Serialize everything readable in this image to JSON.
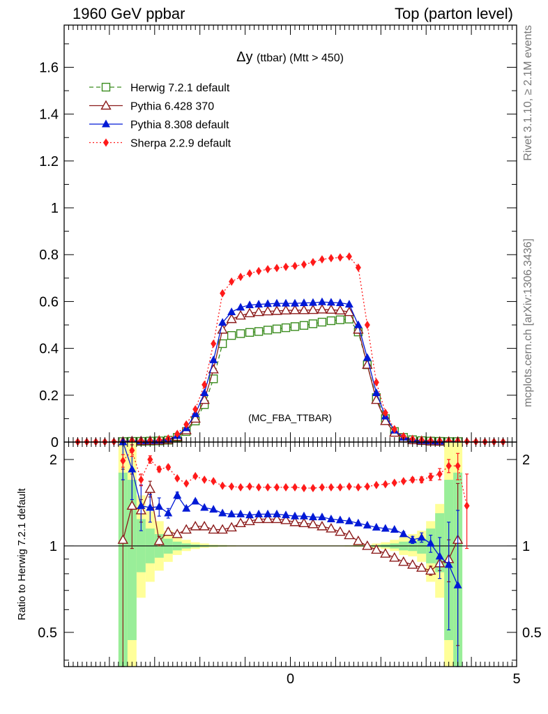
{
  "header": {
    "left": "1960 GeV ppbar",
    "right": "Top (parton level)"
  },
  "side": {
    "rivet": "Rivet 3.1.10, ≥ 2.1M events",
    "mcplots": "mcplots.cern.ch [arXiv:1306.3436]"
  },
  "chart_data": [
    {
      "type": "line",
      "title": "Δy (ttbar) (Mtt > 450)",
      "title_main": "Δy",
      "title_sub": "(ttbar) (Mtt > 450)",
      "watermark": "(MC_FBA_TTBAR)",
      "xlim": [
        -5,
        5
      ],
      "ylim": [
        0,
        1.78
      ],
      "yticks": [
        "0",
        "0.2",
        "0.4",
        "0.6",
        "0.8",
        "1",
        "1.2",
        "1.4",
        "1.6"
      ],
      "legend_position": "top-left",
      "series": [
        {
          "name": "Herwig 7.2.1 default",
          "color": "#3a8c1e",
          "marker": "open-square",
          "line": "dashed",
          "x": [
            -3.7,
            -3.5,
            -3.3,
            -3.1,
            -2.9,
            -2.7,
            -2.5,
            -2.3,
            -2.1,
            -1.9,
            -1.7,
            -1.5,
            -1.3,
            -1.1,
            -0.9,
            -0.7,
            -0.5,
            -0.3,
            -0.1,
            0.1,
            0.3,
            0.5,
            0.7,
            0.9,
            1.1,
            1.3,
            1.5,
            1.7,
            1.9,
            2.1,
            2.3,
            2.5,
            2.7,
            2.9,
            3.1,
            3.3,
            3.5,
            3.7
          ],
          "y": [
            0.002,
            0.003,
            0.003,
            0.004,
            0.005,
            0.008,
            0.02,
            0.045,
            0.09,
            0.16,
            0.27,
            0.42,
            0.455,
            0.463,
            0.468,
            0.472,
            0.478,
            0.483,
            0.488,
            0.493,
            0.498,
            0.505,
            0.512,
            0.518,
            0.522,
            0.525,
            0.47,
            0.33,
            0.19,
            0.1,
            0.045,
            0.02,
            0.01,
            0.006,
            0.004,
            0.003,
            0.002,
            0.002
          ]
        },
        {
          "name": "Pythia 6.428 370",
          "color": "#8b1a1a",
          "marker": "open-triangle",
          "line": "solid",
          "x": [
            -3.7,
            -3.5,
            -3.3,
            -3.1,
            -2.9,
            -2.7,
            -2.5,
            -2.3,
            -2.1,
            -1.9,
            -1.7,
            -1.5,
            -1.3,
            -1.1,
            -0.9,
            -0.7,
            -0.5,
            -0.3,
            -0.1,
            0.1,
            0.3,
            0.5,
            0.7,
            0.9,
            1.1,
            1.3,
            1.5,
            1.7,
            1.9,
            2.1,
            2.3,
            2.5,
            2.7,
            2.9,
            3.1,
            3.3,
            3.5,
            3.7
          ],
          "y": [
            0.002,
            0.004,
            0.004,
            0.005,
            0.006,
            0.009,
            0.022,
            0.05,
            0.1,
            0.18,
            0.31,
            0.48,
            0.525,
            0.54,
            0.55,
            0.555,
            0.558,
            0.56,
            0.562,
            0.563,
            0.563,
            0.564,
            0.566,
            0.565,
            0.562,
            0.555,
            0.48,
            0.33,
            0.18,
            0.09,
            0.04,
            0.016,
            0.008,
            0.005,
            0.003,
            0.002,
            0.002,
            0.002
          ]
        },
        {
          "name": "Pythia 8.308 default",
          "color": "#0019d6",
          "marker": "filled-triangle",
          "line": "solid",
          "x": [
            -3.7,
            -3.5,
            -3.3,
            -3.1,
            -2.9,
            -2.7,
            -2.5,
            -2.3,
            -2.1,
            -1.9,
            -1.7,
            -1.5,
            -1.3,
            -1.1,
            -0.9,
            -0.7,
            -0.5,
            -0.3,
            -0.1,
            0.1,
            0.3,
            0.5,
            0.7,
            0.9,
            1.1,
            1.3,
            1.5,
            1.7,
            1.9,
            2.1,
            2.3,
            2.5,
            2.7,
            2.9,
            3.1,
            3.3,
            3.5,
            3.7
          ],
          "y": [
            0.003,
            0.005,
            0.005,
            0.006,
            0.007,
            0.011,
            0.027,
            0.06,
            0.12,
            0.21,
            0.35,
            0.51,
            0.555,
            0.575,
            0.585,
            0.588,
            0.59,
            0.592,
            0.592,
            0.592,
            0.594,
            0.595,
            0.598,
            0.596,
            0.594,
            0.588,
            0.5,
            0.36,
            0.21,
            0.11,
            0.05,
            0.02,
            0.01,
            0.006,
            0.004,
            0.003,
            0.002,
            0.002
          ]
        },
        {
          "name": "Sherpa 2.2.9 default",
          "color": "#ff1a1a",
          "marker": "filled-diamond",
          "line": "dotted",
          "x": [
            -4.7,
            -4.5,
            -4.3,
            -4.1,
            -3.9,
            -3.7,
            -3.5,
            -3.3,
            -3.1,
            -2.9,
            -2.7,
            -2.5,
            -2.3,
            -2.1,
            -1.9,
            -1.7,
            -1.5,
            -1.3,
            -1.1,
            -0.9,
            -0.7,
            -0.5,
            -0.3,
            -0.1,
            0.1,
            0.3,
            0.5,
            0.7,
            0.9,
            1.1,
            1.3,
            1.5,
            1.7,
            1.9,
            2.1,
            2.3,
            2.5,
            2.7,
            2.9,
            3.1,
            3.3,
            3.5,
            3.7,
            3.9,
            4.1,
            4.3,
            4.5,
            4.7
          ],
          "y": [
            0.001,
            0.001,
            0.001,
            0.001,
            0.002,
            0.003,
            0.005,
            0.005,
            0.006,
            0.009,
            0.015,
            0.035,
            0.075,
            0.14,
            0.245,
            0.42,
            0.635,
            0.685,
            0.705,
            0.72,
            0.73,
            0.738,
            0.743,
            0.748,
            0.752,
            0.758,
            0.768,
            0.78,
            0.785,
            0.788,
            0.792,
            0.745,
            0.5,
            0.255,
            0.125,
            0.055,
            0.025,
            0.013,
            0.008,
            0.006,
            0.005,
            0.005,
            0.004,
            0.003,
            0.002,
            0.001,
            0.001,
            0.001
          ]
        }
      ]
    },
    {
      "type": "line",
      "ylabel": "Ratio to Herwig 7.2.1 default",
      "xlim": [
        -5,
        5
      ],
      "ylim": [
        0.38,
        2.3
      ],
      "y_scale": "log",
      "xticks": [
        "0",
        "5"
      ],
      "yticks": [
        "0.5",
        "1",
        "2"
      ],
      "bands": [
        {
          "name": "outer",
          "color": "#ffff99",
          "x": [
            -3.7,
            -3.5,
            -3.3,
            -3.1,
            -2.9,
            -2.7,
            -2.5,
            -2.3,
            -2.1,
            -1.9,
            -1.7,
            -1.5,
            -1.3,
            -1.1,
            -0.9,
            -0.7,
            -0.5,
            -0.3,
            -0.1,
            0.1,
            0.3,
            0.5,
            0.7,
            0.9,
            1.1,
            1.3,
            1.5,
            1.7,
            1.9,
            2.1,
            2.3,
            2.5,
            2.7,
            2.9,
            3.1,
            3.3,
            3.5,
            3.7
          ],
          "lo": [
            0.38,
            0.38,
            0.66,
            0.75,
            0.82,
            0.88,
            0.93,
            0.96,
            0.975,
            0.985,
            0.99,
            0.993,
            0.995,
            0.996,
            0.996,
            0.996,
            0.996,
            0.996,
            0.996,
            0.996,
            0.996,
            0.996,
            0.996,
            0.996,
            0.996,
            0.995,
            0.993,
            0.99,
            0.985,
            0.975,
            0.96,
            0.93,
            0.92,
            0.88,
            0.75,
            0.66,
            0.38,
            0.38
          ],
          "hi": [
            2.3,
            2.3,
            1.5,
            1.32,
            1.22,
            1.13,
            1.08,
            1.05,
            1.03,
            1.02,
            1.01,
            1.008,
            1.006,
            1.005,
            1.005,
            1.005,
            1.005,
            1.005,
            1.005,
            1.005,
            1.005,
            1.005,
            1.005,
            1.005,
            1.005,
            1.006,
            1.008,
            1.01,
            1.02,
            1.03,
            1.05,
            1.08,
            1.1,
            1.13,
            1.22,
            1.4,
            2.3,
            2.3
          ]
        },
        {
          "name": "inner",
          "color": "#99ee99",
          "x": [
            -3.7,
            -3.5,
            -3.3,
            -3.1,
            -2.9,
            -2.7,
            -2.5,
            -2.3,
            -2.1,
            -1.9,
            -1.7,
            -1.5,
            -1.3,
            -1.1,
            -0.9,
            -0.7,
            -0.5,
            -0.3,
            -0.1,
            0.1,
            0.3,
            0.5,
            0.7,
            0.9,
            1.1,
            1.3,
            1.5,
            1.7,
            1.9,
            2.1,
            2.3,
            2.5,
            2.7,
            2.9,
            3.1,
            3.3,
            3.5,
            3.7
          ],
          "lo": [
            0.38,
            0.47,
            0.81,
            0.87,
            0.91,
            0.94,
            0.965,
            0.98,
            0.988,
            0.993,
            0.995,
            0.996,
            0.997,
            0.998,
            0.998,
            0.998,
            0.998,
            0.998,
            0.998,
            0.998,
            0.998,
            0.998,
            0.998,
            0.998,
            0.998,
            0.997,
            0.996,
            0.995,
            0.993,
            0.988,
            0.98,
            0.965,
            0.96,
            0.94,
            0.87,
            0.81,
            0.47,
            0.38
          ],
          "hi": [
            1.8,
            1.7,
            1.24,
            1.15,
            1.1,
            1.06,
            1.035,
            1.02,
            1.012,
            1.007,
            1.005,
            1.004,
            1.003,
            1.002,
            1.002,
            1.002,
            1.002,
            1.002,
            1.002,
            1.002,
            1.002,
            1.002,
            1.002,
            1.002,
            1.002,
            1.003,
            1.004,
            1.005,
            1.007,
            1.012,
            1.02,
            1.035,
            1.04,
            1.06,
            1.15,
            1.3,
            1.7,
            1.8
          ]
        }
      ],
      "series": [
        {
          "name": "Pythia 6.428 370",
          "x": [
            -3.7,
            -3.5,
            -3.3,
            -3.1,
            -2.9,
            -2.7,
            -2.5,
            -2.3,
            -2.1,
            -1.9,
            -1.7,
            -1.5,
            -1.3,
            -1.1,
            -0.9,
            -0.7,
            -0.5,
            -0.3,
            -0.1,
            0.1,
            0.3,
            0.5,
            0.7,
            0.9,
            1.1,
            1.3,
            1.5,
            1.7,
            1.9,
            2.1,
            2.3,
            2.5,
            2.7,
            2.9,
            3.1,
            3.3,
            3.5,
            3.7
          ],
          "y": [
            1.05,
            1.38,
            1.33,
            1.58,
            1.04,
            1.12,
            1.1,
            1.14,
            1.17,
            1.17,
            1.14,
            1.14,
            1.16,
            1.2,
            1.22,
            1.24,
            1.24,
            1.24,
            1.23,
            1.21,
            1.2,
            1.19,
            1.17,
            1.15,
            1.12,
            1.09,
            1.04,
            1.0,
            0.97,
            0.94,
            0.91,
            0.88,
            0.86,
            0.84,
            0.82,
            0.87,
            0.9,
            1.05
          ],
          "err": [
            0.8,
            0.4,
            0.12,
            0.1,
            0.04,
            0.03,
            0.02,
            0.01,
            0.01,
            0.01,
            0.01,
            0.01,
            0.01,
            0.01,
            0.01,
            0.01,
            0.01,
            0.01,
            0.01,
            0.01,
            0.01,
            0.01,
            0.01,
            0.01,
            0.01,
            0.01,
            0.01,
            0.01,
            0.01,
            0.01,
            0.01,
            0.01,
            0.01,
            0.02,
            0.03,
            0.05,
            0.15,
            0.6
          ]
        },
        {
          "name": "Pythia 8.308 default",
          "x": [
            -3.7,
            -3.5,
            -3.3,
            -3.1,
            -2.9,
            -2.7,
            -2.5,
            -2.3,
            -2.1,
            -1.9,
            -1.7,
            -1.5,
            -1.3,
            -1.1,
            -0.9,
            -0.7,
            -0.5,
            -0.3,
            -0.1,
            0.1,
            0.3,
            0.5,
            0.7,
            0.9,
            1.1,
            1.3,
            1.5,
            1.7,
            1.9,
            2.1,
            2.3,
            2.5,
            2.7,
            2.9,
            3.1,
            3.3,
            3.5,
            3.7
          ],
          "y": [
            2.3,
            1.85,
            1.38,
            1.36,
            1.37,
            1.3,
            1.5,
            1.35,
            1.43,
            1.36,
            1.34,
            1.3,
            1.29,
            1.29,
            1.28,
            1.29,
            1.29,
            1.29,
            1.28,
            1.27,
            1.27,
            1.26,
            1.26,
            1.24,
            1.23,
            1.22,
            1.2,
            1.18,
            1.16,
            1.15,
            1.14,
            1.1,
            1.05,
            1.07,
            1.02,
            0.92,
            0.86,
            0.73
          ],
          "err": [
            0.6,
            0.4,
            0.25,
            0.15,
            0.1,
            0.05,
            0.04,
            0.02,
            0.02,
            0.01,
            0.01,
            0.01,
            0.01,
            0.01,
            0.01,
            0.01,
            0.01,
            0.01,
            0.01,
            0.01,
            0.01,
            0.01,
            0.01,
            0.01,
            0.01,
            0.01,
            0.01,
            0.01,
            0.01,
            0.01,
            0.01,
            0.02,
            0.03,
            0.04,
            0.07,
            0.15,
            0.35,
            0.6
          ]
        },
        {
          "name": "Sherpa 2.2.9 default",
          "x": [
            -3.7,
            -3.5,
            -3.3,
            -3.1,
            -2.9,
            -2.7,
            -2.5,
            -2.3,
            -2.1,
            -1.9,
            -1.7,
            -1.5,
            -1.3,
            -1.1,
            -0.9,
            -0.7,
            -0.5,
            -0.3,
            -0.1,
            0.1,
            0.3,
            0.5,
            0.7,
            0.9,
            1.1,
            1.3,
            1.5,
            1.7,
            1.9,
            2.1,
            2.3,
            2.5,
            2.7,
            2.9,
            3.1,
            3.3,
            3.5,
            3.7,
            3.9
          ],
          "y": [
            1.98,
            2.15,
            1.7,
            2.0,
            1.85,
            1.88,
            1.72,
            1.65,
            1.75,
            1.7,
            1.68,
            1.62,
            1.61,
            1.6,
            1.61,
            1.6,
            1.6,
            1.6,
            1.6,
            1.6,
            1.59,
            1.59,
            1.6,
            1.6,
            1.6,
            1.61,
            1.6,
            1.61,
            1.63,
            1.64,
            1.66,
            1.68,
            1.7,
            1.7,
            1.74,
            1.78,
            1.9,
            1.9,
            1.38
          ],
          "err": [
            0.1,
            0.1,
            0.08,
            0.06,
            0.04,
            0.03,
            0.02,
            0.01,
            0.01,
            0.01,
            0.01,
            0.01,
            0.01,
            0.01,
            0.01,
            0.01,
            0.01,
            0.01,
            0.01,
            0.01,
            0.01,
            0.01,
            0.01,
            0.01,
            0.01,
            0.01,
            0.01,
            0.01,
            0.01,
            0.01,
            0.02,
            0.02,
            0.03,
            0.04,
            0.05,
            0.08,
            0.1,
            0.2,
            0.4
          ]
        }
      ]
    }
  ]
}
